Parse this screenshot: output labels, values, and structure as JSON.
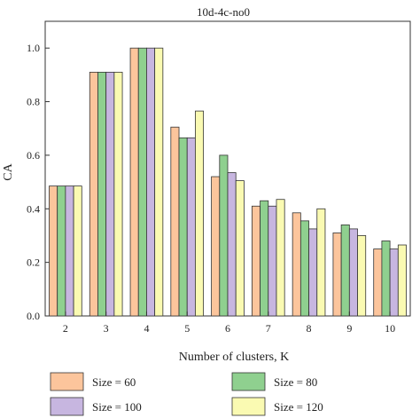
{
  "chart_data": {
    "type": "bar",
    "title": "10d-4c-no0",
    "xlabel": "Number of clusters, K",
    "ylabel": "CA",
    "ylim": [
      0,
      1.1
    ],
    "yticks": [
      "0.0",
      "0.2",
      "0.4",
      "0.6",
      "0.8",
      "1.0"
    ],
    "categories": [
      "2",
      "3",
      "4",
      "5",
      "6",
      "7",
      "8",
      "9",
      "10"
    ],
    "grid": false,
    "legend_position": "bottom",
    "series": [
      {
        "name": "Size = 60",
        "color": "#fcc59c",
        "values": [
          0.485,
          0.91,
          1.0,
          0.705,
          0.52,
          0.41,
          0.385,
          0.31,
          0.25
        ]
      },
      {
        "name": "Size = 80",
        "color": "#8fd08f",
        "values": [
          0.485,
          0.91,
          1.0,
          0.665,
          0.6,
          0.43,
          0.355,
          0.34,
          0.28
        ]
      },
      {
        "name": "Size = 100",
        "color": "#c7b6e0",
        "values": [
          0.485,
          0.91,
          1.0,
          0.665,
          0.535,
          0.41,
          0.325,
          0.325,
          0.25
        ]
      },
      {
        "name": "Size = 120",
        "color": "#fafab2",
        "values": [
          0.485,
          0.91,
          1.0,
          0.765,
          0.505,
          0.435,
          0.4,
          0.3,
          0.265
        ]
      }
    ]
  }
}
